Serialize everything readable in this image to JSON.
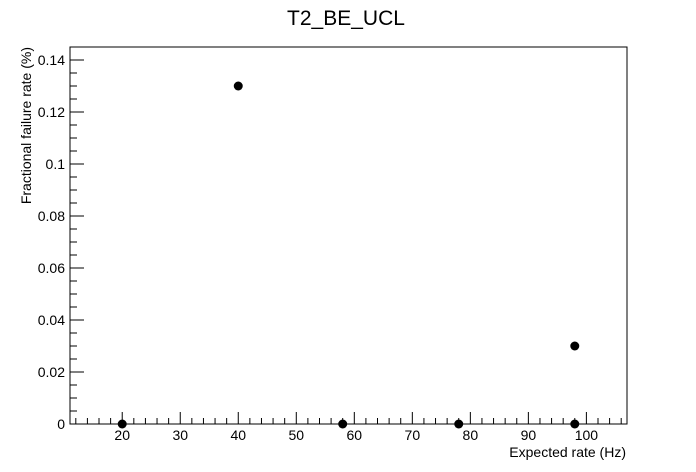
{
  "chart_data": {
    "type": "scatter",
    "title": "T2_BE_UCL",
    "xlabel": "Expected rate (Hz)",
    "ylabel": "Fractional failure rate (%)",
    "xlim": [
      11,
      107
    ],
    "ylim": [
      0,
      0.145
    ],
    "grid": false,
    "x_ticks": [
      20,
      30,
      40,
      50,
      60,
      70,
      80,
      90,
      100
    ],
    "x_tick_labels": [
      "20",
      "30",
      "40",
      "50",
      "60",
      "70",
      "80",
      "90",
      "100"
    ],
    "y_ticks": [
      0,
      0.02,
      0.04,
      0.06,
      0.08,
      0.1,
      0.12,
      0.14
    ],
    "y_tick_labels": [
      "0",
      "0.02",
      "0.04",
      "0.06",
      "0.08",
      "0.1",
      "0.12",
      "0.14"
    ],
    "points": [
      {
        "x": 20,
        "y": 0
      },
      {
        "x": 40,
        "y": 0.13
      },
      {
        "x": 58,
        "y": 0
      },
      {
        "x": 78,
        "y": 0
      },
      {
        "x": 98,
        "y": 0
      },
      {
        "x": 98,
        "y": 0.03
      }
    ],
    "marker_color": "#000000"
  }
}
